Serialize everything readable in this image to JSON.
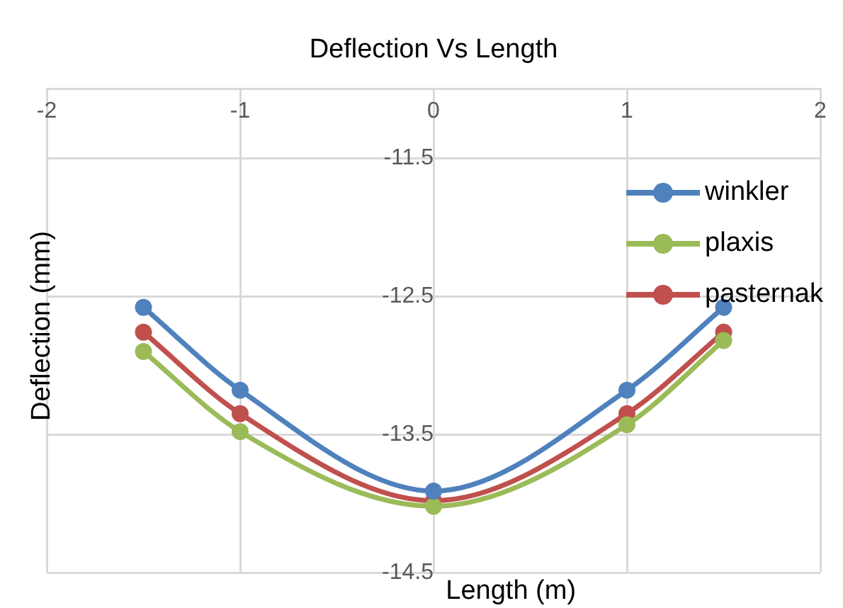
{
  "chart_data": {
    "type": "line",
    "title": "Deflection Vs Length",
    "xlabel": "Length (m)",
    "ylabel": "Deflection (mm)",
    "x": [
      -1.5,
      -1,
      0,
      1,
      1.5
    ],
    "series": [
      {
        "name": "winkler",
        "color": "#4f81bd",
        "values": [
          -12.58,
          -13.18,
          -13.91,
          -13.18,
          -12.58
        ]
      },
      {
        "name": "plaxis",
        "color": "#9bbb59",
        "values": [
          -12.9,
          -13.48,
          -14.02,
          -13.43,
          -12.82
        ]
      },
      {
        "name": "pasternak",
        "color": "#c0504d",
        "values": [
          -12.76,
          -13.35,
          -13.98,
          -13.35,
          -12.76
        ]
      }
    ],
    "xlim": [
      -2,
      2
    ],
    "xticks": [
      -2,
      -1,
      0,
      1,
      2
    ],
    "ylim": [
      -14.5,
      -11
    ],
    "yticks": [
      -14.5,
      -13.5,
      -12.5,
      -11.5
    ],
    "grid": true,
    "legend": "top right",
    "marker": "circle",
    "line_style": "solid"
  }
}
